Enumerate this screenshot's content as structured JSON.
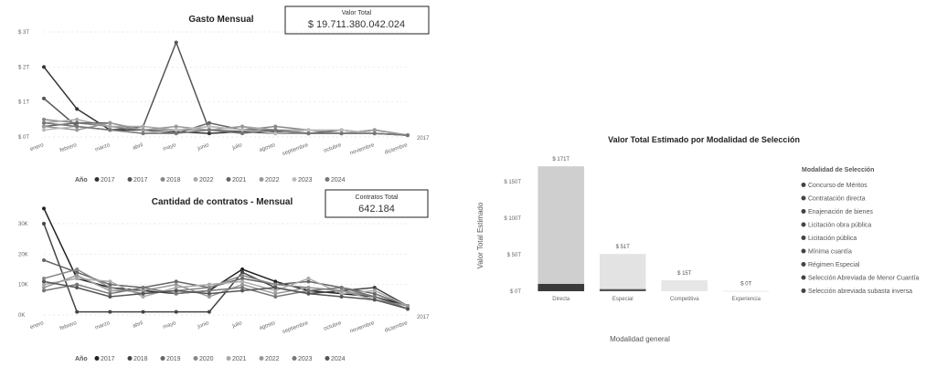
{
  "charts": {
    "spend": {
      "title": "Gasto Mensual",
      "kpi_label": "Valor Total",
      "kpi_value": "$ 19.711.380.042.024",
      "chart_data": {
        "type": "line",
        "title": "Gasto Mensual",
        "y_ticks": [
          "$ 3T",
          "$ 2T",
          "$ 1T",
          "$ 0T"
        ],
        "categories": [
          "enero",
          "febrero",
          "marzo",
          "abril",
          "mayo",
          "junio",
          "julio",
          "agosto",
          "septiembre",
          "octubre",
          "noviembre",
          "diciembre"
        ],
        "ylim": [
          0,
          3
        ],
        "legend_title": "Año",
        "series": [
          {
            "name": "2017",
            "color": "#333333",
            "values": [
              2.0,
              0.8,
              0.2,
              0.2,
              0.15,
              0.1,
              0.15,
              0.1,
              0.1,
              0.1,
              0.1,
              0.05
            ]
          },
          {
            "name": "2017",
            "color": "#555555",
            "values": [
              1.1,
              0.3,
              0.2,
              0.3,
              2.7,
              0.2,
              0.15,
              0.15,
              0.1,
              0.1,
              0.2,
              0.05
            ]
          },
          {
            "name": "2018",
            "color": "#888888",
            "values": [
              0.5,
              0.4,
              0.3,
              0.2,
              0.2,
              0.3,
              0.2,
              0.3,
              0.2,
              0.1,
              0.1,
              0.05
            ]
          },
          {
            "name": "2022",
            "color": "#aaaaaa",
            "values": [
              0.4,
              0.5,
              0.3,
              0.3,
              0.2,
              0.2,
              0.3,
              0.2,
              0.2,
              0.1,
              0.1,
              0.05
            ]
          },
          {
            "name": "2021",
            "color": "#666666",
            "values": [
              0.3,
              0.4,
              0.4,
              0.2,
              0.1,
              0.4,
              0.2,
              0.2,
              0.1,
              0.2,
              0.1,
              0.05
            ]
          },
          {
            "name": "2022",
            "color": "#999999",
            "values": [
              0.3,
              0.2,
              0.4,
              0.2,
              0.3,
              0.2,
              0.3,
              0.1,
              0.1,
              0.1,
              0.2,
              0.05
            ]
          },
          {
            "name": "2023",
            "color": "#bbbbbb",
            "values": [
              0.2,
              0.3,
              0.2,
              0.1,
              0.2,
              0.3,
              0.2,
              0.1,
              0.2,
              0.2,
              0.1,
              0.05
            ]
          },
          {
            "name": "2024",
            "color": "#777777",
            "values": [
              0.4,
              0.3,
              0.2,
              0.1,
              0.1,
              0.2,
              0.1,
              0.2,
              0.1,
              0.1,
              0.1,
              0.05
            ]
          }
        ],
        "end_label": "2017"
      }
    },
    "contracts": {
      "title": "Cantidad de contratos - Mensual",
      "kpi_label": "Contratos Total",
      "kpi_value": "642.184",
      "chart_data": {
        "type": "line",
        "title": "Cantidad de contratos - Mensual",
        "y_ticks": [
          "30K",
          "20K",
          "10K",
          "0K"
        ],
        "categories": [
          "enero",
          "febrero",
          "marzo",
          "abril",
          "mayo",
          "junio",
          "julio",
          "agosto",
          "septiembre",
          "octubre",
          "noviembre",
          "diciembre"
        ],
        "ylim": [
          0,
          30
        ],
        "legend_title": "Año",
        "series": [
          {
            "name": "2017",
            "color": "#222222",
            "values": [
              35,
              12,
              9,
              8,
              7,
              8,
              15,
              11,
              8,
              7,
              6,
              3
            ]
          },
          {
            "name": "2018",
            "color": "#444444",
            "values": [
              30,
              1,
              1,
              1,
              1,
              1,
              14,
              9,
              7,
              8,
              9,
              3
            ]
          },
          {
            "name": "2019",
            "color": "#666666",
            "values": [
              18,
              14,
              10,
              9,
              11,
              9,
              12,
              10,
              11,
              9,
              7,
              3
            ]
          },
          {
            "name": "2020",
            "color": "#888888",
            "values": [
              12,
              15,
              9,
              7,
              8,
              9,
              13,
              10,
              9,
              8,
              6,
              2
            ]
          },
          {
            "name": "2021",
            "color": "#aaaaaa",
            "values": [
              10,
              12,
              11,
              6,
              9,
              10,
              11,
              8,
              12,
              7,
              8,
              3
            ]
          },
          {
            "name": "2022",
            "color": "#999999",
            "values": [
              9,
              13,
              8,
              8,
              10,
              6,
              10,
              7,
              9,
              8,
              5,
              3
            ]
          },
          {
            "name": "2023",
            "color": "#777777",
            "values": [
              8,
              10,
              7,
              9,
              7,
              8,
              9,
              6,
              8,
              9,
              6,
              2
            ]
          },
          {
            "name": "2024",
            "color": "#555555",
            "values": [
              11,
              9,
              6,
              7,
              8,
              7,
              8,
              9,
              7,
              6,
              5,
              2
            ]
          }
        ],
        "legend_display": [
          "2017",
          "2018",
          "2019",
          "2020",
          "2021",
          "2022",
          "2023",
          "2024"
        ],
        "end_label": "2017"
      }
    },
    "bar": {
      "title": "Valor Total Estimado por Modalidad de Selección",
      "chart_data": {
        "type": "bar",
        "title": "Valor Total Estimado por Modalidad de Selección",
        "xlabel": "Modalidad general",
        "ylabel": "Valor Total Estimado",
        "y_ticks": [
          "$ 150T",
          "$ 100T",
          "$ 50T",
          "$ 0T"
        ],
        "ylim": [
          0,
          150
        ],
        "categories": [
          "Directa",
          "Especial",
          "Competitiva",
          "Experiencia"
        ],
        "stacks": [
          {
            "category": "Directa",
            "label": "$ 171T",
            "segments": [
              {
                "value": 10,
                "color": "#3a3a3a"
              },
              {
                "value": 161,
                "color": "#cfcfcf"
              }
            ]
          },
          {
            "category": "Especial",
            "label": "$ 51T",
            "segments": [
              {
                "value": 3,
                "color": "#555555"
              },
              {
                "value": 48,
                "color": "#e3e3e3"
              }
            ]
          },
          {
            "category": "Competitiva",
            "label": "$ 15T",
            "segments": [
              {
                "value": 15,
                "color": "#e6e6e6"
              }
            ]
          },
          {
            "category": "Experiencia",
            "label": "$ 0T",
            "segments": [
              {
                "value": 0.5,
                "color": "#e6e6e6"
              }
            ]
          }
        ],
        "legend_title": "Modalidad de Selección",
        "legend": [
          "Concurso de Méritos",
          "Contratación directa",
          "Enajenación de bienes",
          "Licitación obra pública",
          "Licitación pública",
          "Mínima cuantía",
          "Régimen Especial",
          "Selección Abreviada de Menor Cuantía",
          "Selección abreviada subasta inversa"
        ]
      }
    }
  }
}
